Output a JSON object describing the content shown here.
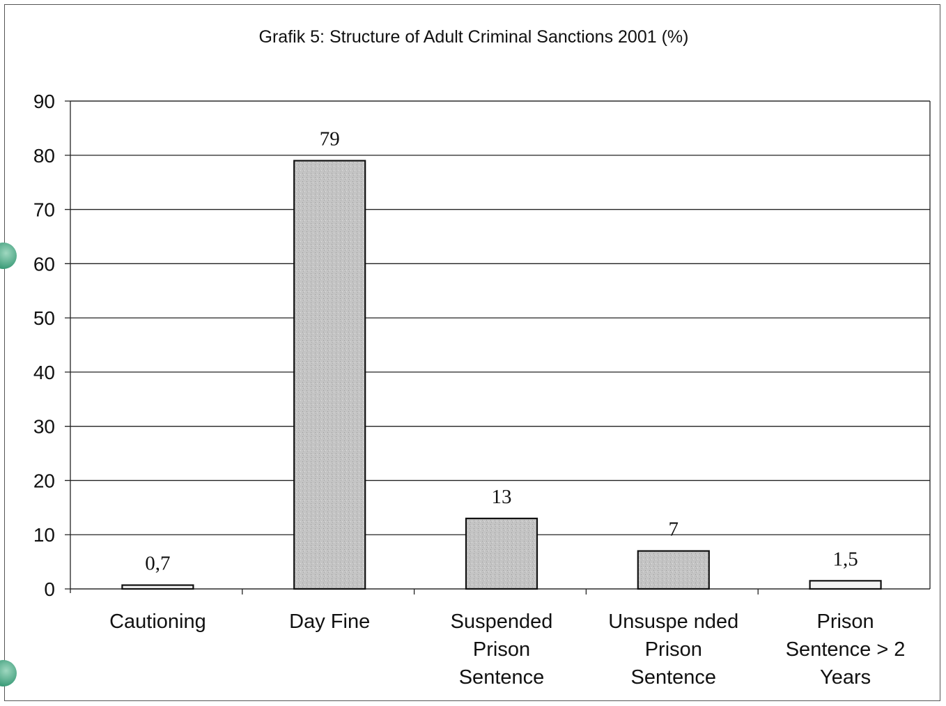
{
  "chart_data": {
    "type": "bar",
    "title": "Grafik 5: Structure of Adult Criminal Sanctions 2001 (%)",
    "categories": [
      [
        "Cautioning"
      ],
      [
        "Day Fine"
      ],
      [
        "Suspended",
        "Prison",
        "Sentence"
      ],
      [
        "Unsuspe nded",
        "Prison",
        "Sentence"
      ],
      [
        "Prison",
        "Sentence > 2",
        "Years"
      ]
    ],
    "values": [
      0.7,
      79,
      13,
      7,
      1.5
    ],
    "data_labels": [
      "0,7",
      "79",
      "13",
      "7",
      "1,5"
    ],
    "ylim": [
      0,
      90
    ],
    "yticks": [
      0,
      10,
      20,
      30,
      40,
      50,
      60,
      70,
      80,
      90
    ],
    "grid": true,
    "legend": "none",
    "bar_color": "#c9c9c9",
    "light_bar_color": "#f2f2f2"
  }
}
